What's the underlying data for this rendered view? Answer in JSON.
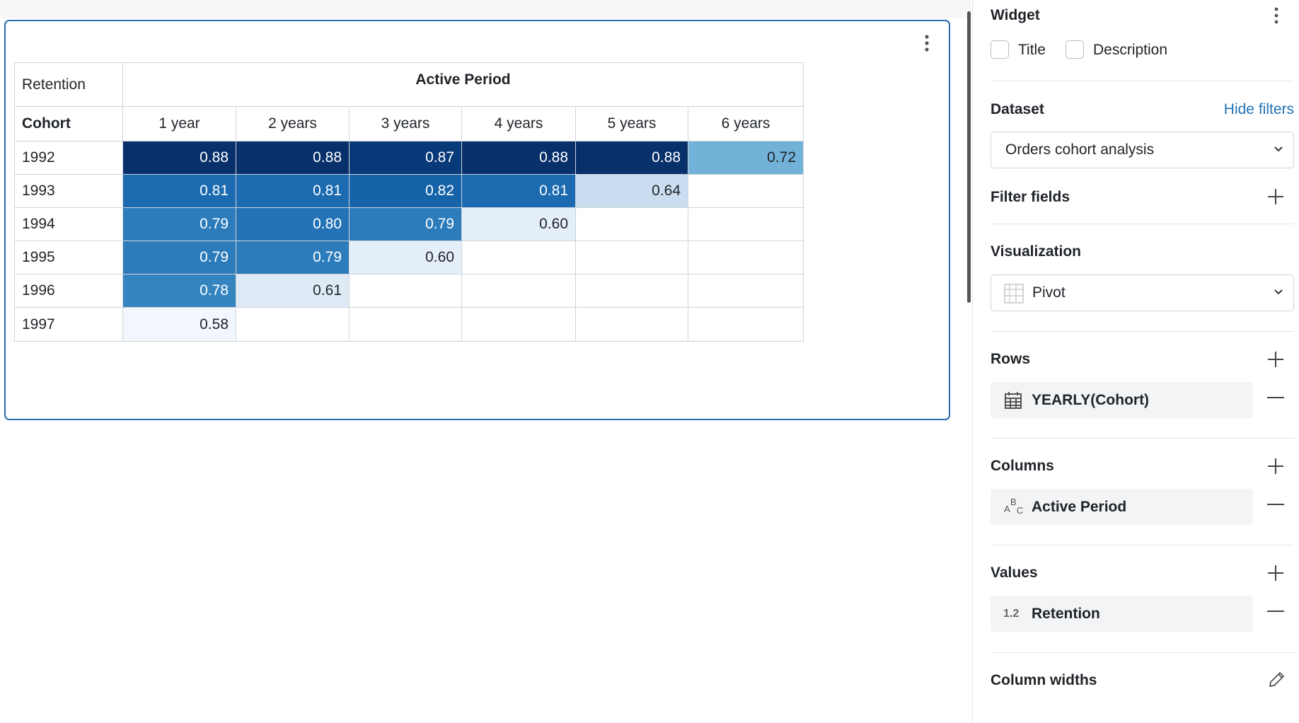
{
  "table": {
    "corner": "Retention",
    "header": "Active Period",
    "row_header": "Cohort",
    "columns": [
      "1 year",
      "2 years",
      "3 years",
      "4 years",
      "5 years",
      "6 years"
    ],
    "rows": [
      {
        "cohort": "1992",
        "values": [
          "0.88",
          "0.88",
          "0.87",
          "0.88",
          "0.88",
          "0.72"
        ]
      },
      {
        "cohort": "1993",
        "values": [
          "0.81",
          "0.81",
          "0.82",
          "0.81",
          "0.64"
        ]
      },
      {
        "cohort": "1994",
        "values": [
          "0.79",
          "0.80",
          "0.79",
          "0.60"
        ]
      },
      {
        "cohort": "1995",
        "values": [
          "0.79",
          "0.79",
          "0.60"
        ]
      },
      {
        "cohort": "1996",
        "values": [
          "0.78",
          "0.61"
        ]
      },
      {
        "cohort": "1997",
        "values": [
          "0.58"
        ]
      }
    ]
  },
  "sidebar": {
    "widget": "Widget",
    "checkboxes": [
      "Title",
      "Description"
    ],
    "dataset_label": "Dataset",
    "hide_filters": "Hide filters",
    "dataset": "Orders cohort analysis",
    "filter_fields": "Filter fields",
    "visualization_label": "Visualization",
    "visualization": "Pivot",
    "rows_label": "Rows",
    "rows_field": "YEARLY(Cohort)",
    "columns_label": "Columns",
    "columns_icon": "ABC",
    "columns_field": "Active Period",
    "values_label": "Values",
    "values_icon": "1.2",
    "values_field": "Retention",
    "column_widths": "Column widths"
  }
}
